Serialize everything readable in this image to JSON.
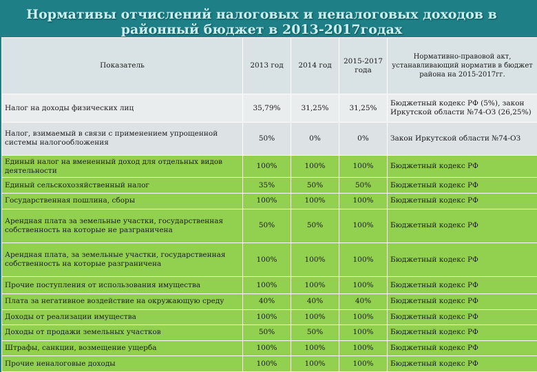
{
  "title": "Нормативы отчислений налоговых и неналоговых доходов в районный бюджет в 2013-2017годах",
  "header": {
    "indicator": "Показатель",
    "y2013": "2013 год",
    "y2014": "2014 год",
    "y2015": "2015-2017 года",
    "law": "Нормативно-правовой акт, устанавливающий норматив в бюджет района на 2015-2017гг."
  },
  "rows": [
    {
      "name": "Налог на доходы физических лиц",
      "y2013": "35,79%",
      "y2014": "31,25%",
      "y2015": "31,25%",
      "law": "Бюджетный кодекс РФ (5%), закон Иркутской области №74-ОЗ (26,25%)"
    },
    {
      "name": "Налог, взимаемый в связи с применением упрощенной системы налогообложения",
      "y2013": "50%",
      "y2014": "0%",
      "y2015": "0%",
      "law": "Закон Иркутской области №74-ОЗ"
    },
    {
      "name": "Единый налог на вмененный доход для отдельных видов деятельности",
      "y2013": "100%",
      "y2014": "100%",
      "y2015": "100%",
      "law": "Бюджетный кодекс РФ"
    },
    {
      "name": "Единый сельскохозяйственный налог",
      "y2013": "35%",
      "y2014": "50%",
      "y2015": "50%",
      "law": "Бюджетный кодекс РФ"
    },
    {
      "name": "Государственная пошлина, сборы",
      "y2013": "100%",
      "y2014": "100%",
      "y2015": "100%",
      "law": "Бюджетный кодекс РФ"
    },
    {
      "name": "Арендная плата за земельные участки, государственная собственность на которые не разграничена",
      "y2013": "50%",
      "y2014": "50%",
      "y2015": "100%",
      "law": "Бюджетный кодекс РФ"
    },
    {
      "name": "Арендная плата, за земельные участки, государственная собственность на которые разграничена",
      "y2013": "100%",
      "y2014": "100%",
      "y2015": "100%",
      "law": "Бюджетный кодекс РФ"
    },
    {
      "name": "Прочие поступления от использования имущества",
      "y2013": "100%",
      "y2014": "100%",
      "y2015": "100%",
      "law": "Бюджетный кодекс РФ"
    },
    {
      "name": "Плата за негативное воздействие на окружающую среду",
      "y2013": "40%",
      "y2014": "40%",
      "y2015": "40%",
      "law": "Бюджетный кодекс РФ"
    },
    {
      "name": "Доходы от реализации имущества",
      "y2013": "100%",
      "y2014": "100%",
      "y2015": "100%",
      "law": "Бюджетный кодекс РФ"
    },
    {
      "name": "Доходы от продажи земельных участков",
      "y2013": "50%",
      "y2014": "50%",
      "y2015": "100%",
      "law": "Бюджетный кодекс РФ"
    },
    {
      "name": "Штрафы, санкции, возмещение ущерба",
      "y2013": "100%",
      "y2014": "100%",
      "y2015": "100%",
      "law": "Бюджетный кодекс РФ"
    },
    {
      "name": "Прочие неналоговые доходы",
      "y2013": "100%",
      "y2014": "100%",
      "y2015": "100%",
      "law": "Бюджетный кодекс РФ"
    }
  ]
}
